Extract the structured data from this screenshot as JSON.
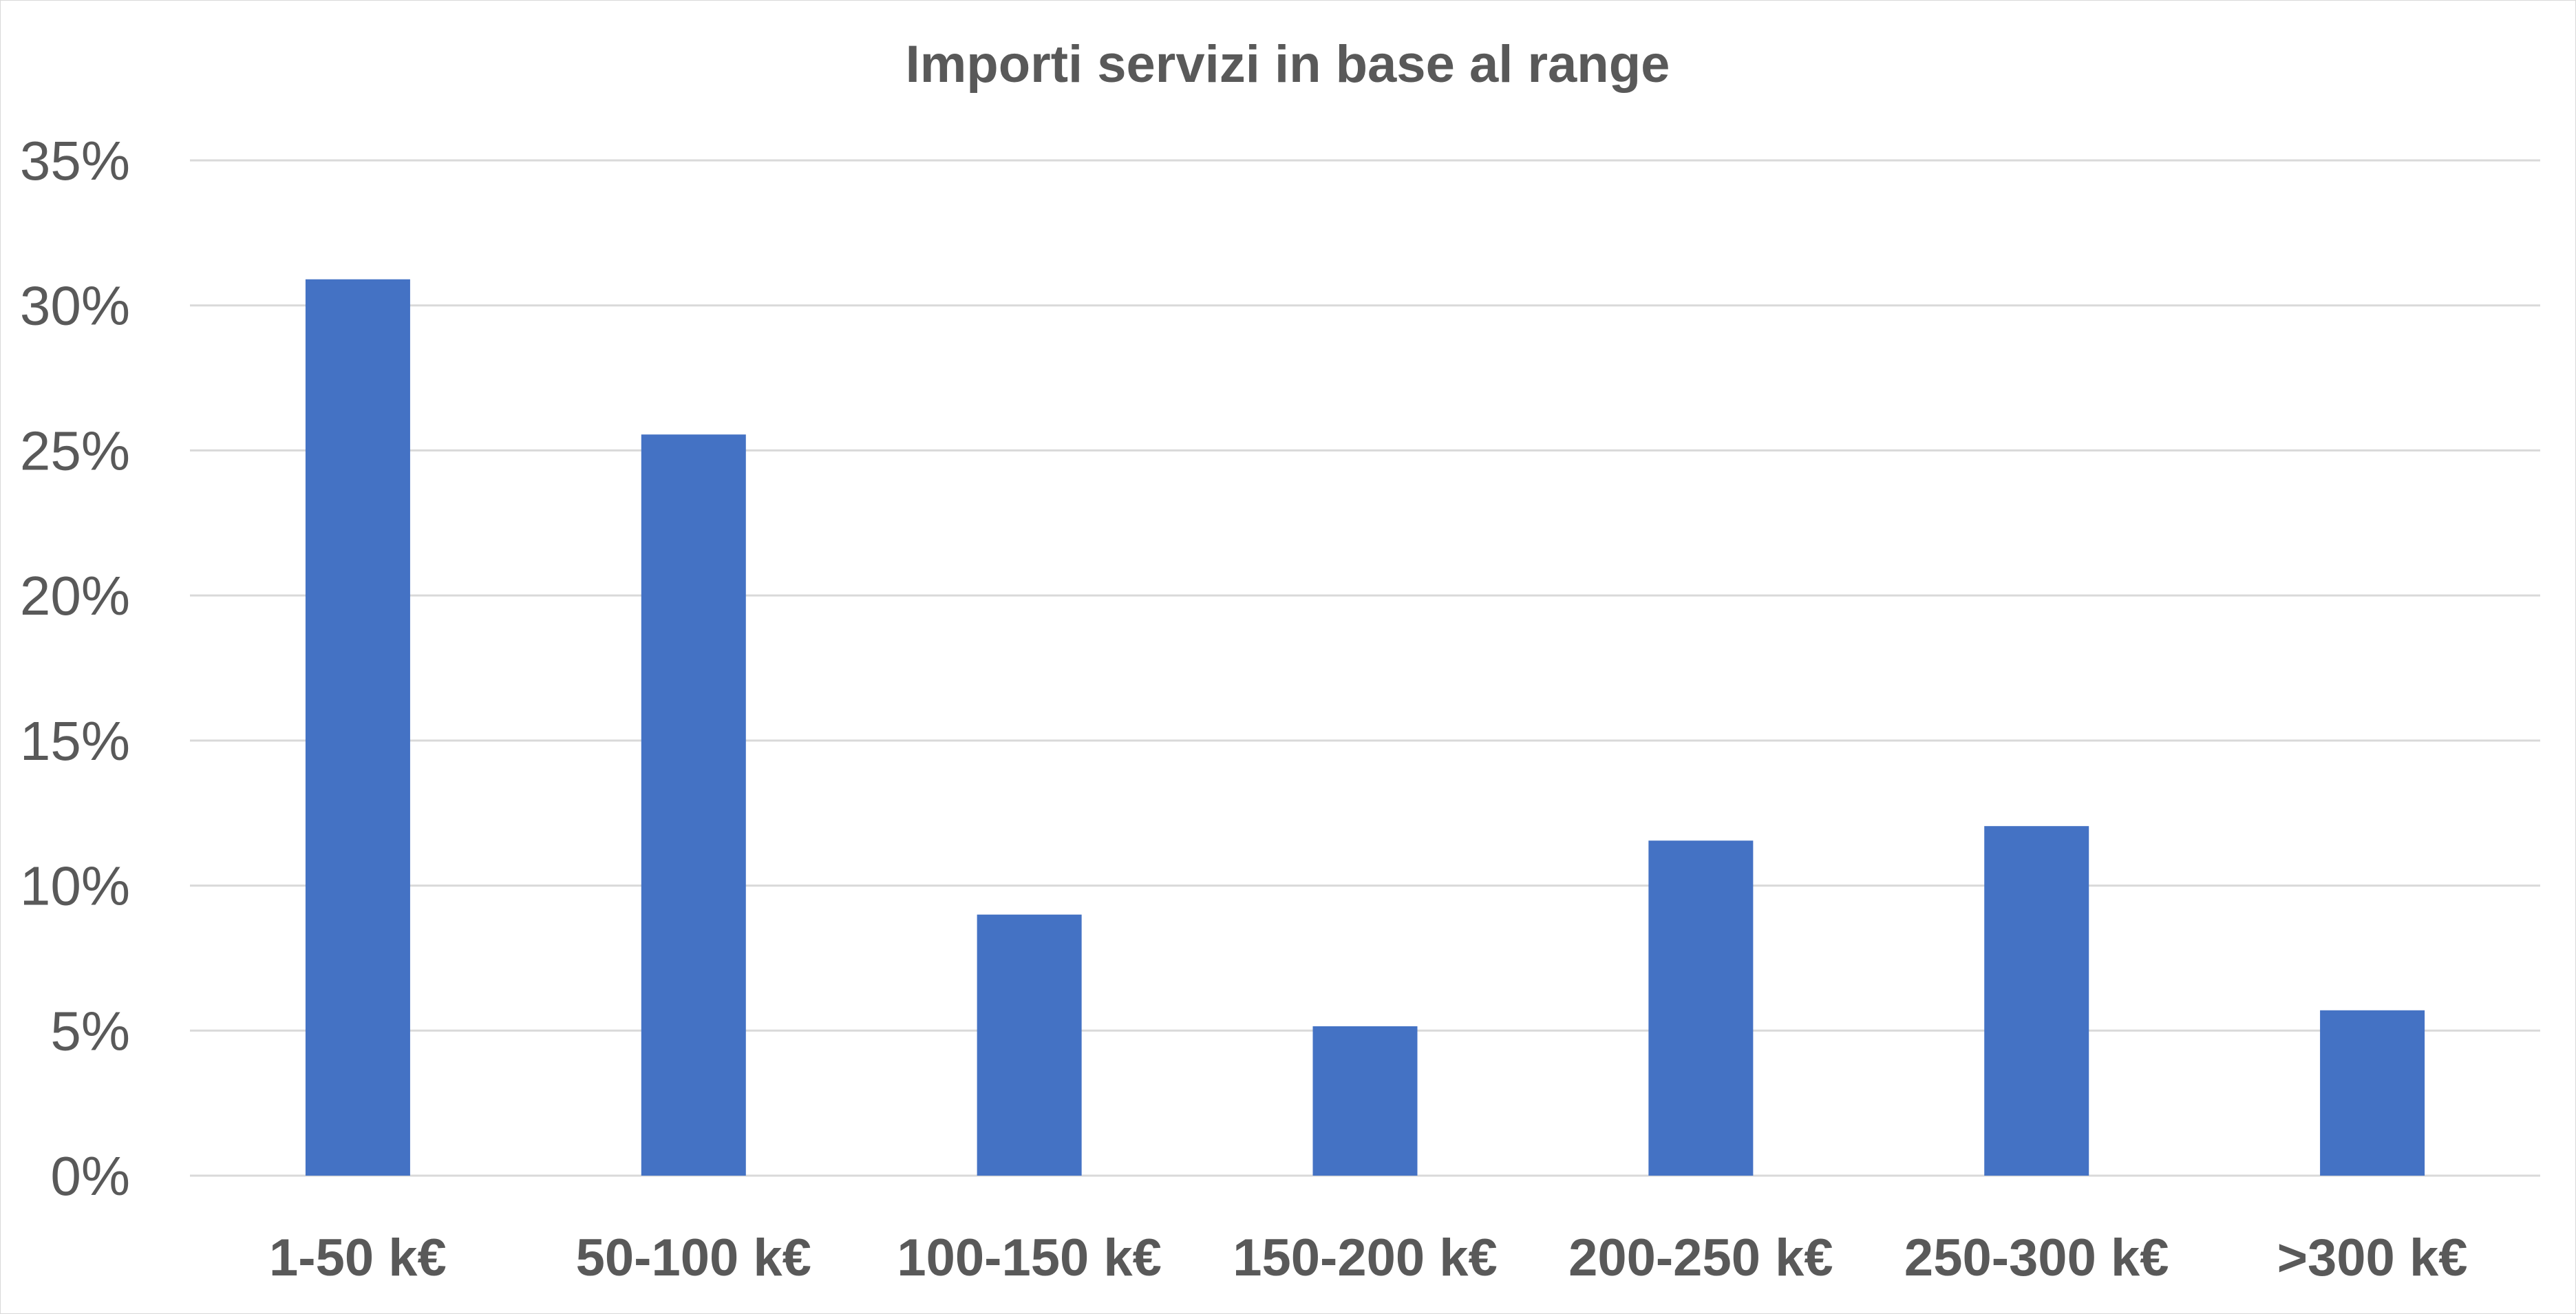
{
  "chart_data": {
    "type": "bar",
    "title": "Importi servizi in base al range",
    "xlabel": "",
    "ylabel": "",
    "categories": [
      "1-50 k€",
      "50-100 k€",
      "100-150 k€",
      "150-200 k€",
      "200-250 k€",
      "250-300 k€",
      ">300 k€"
    ],
    "series": [
      {
        "values": [
          30.9,
          25.55,
          9.0,
          5.15,
          11.55,
          12.05,
          5.7
        ],
        "color": "#4472c4"
      }
    ],
    "ylim": [
      0,
      35
    ],
    "ytick_values": [
      0,
      5,
      10,
      15,
      20,
      25,
      30,
      35
    ],
    "ytick_labels": [
      "0%",
      "5%",
      "10%",
      "15%",
      "20%",
      "25%",
      "30%",
      "35%"
    ],
    "grid": true,
    "legend": "none",
    "colors": {
      "bar": "#4472c4",
      "gridline": "#d9d9d9",
      "text": "#595959"
    }
  }
}
